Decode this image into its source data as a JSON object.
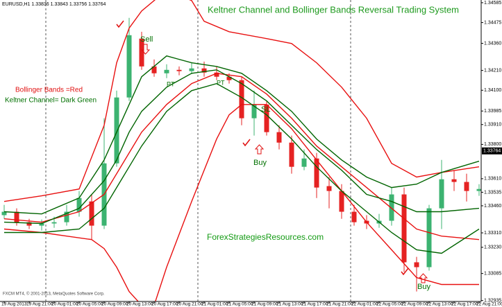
{
  "chart_data": {
    "type": "candlestick",
    "title": "Keltner Channel and Bollinger Bands Reversal Trading System",
    "symbol_info": "EURUSD,H1  1.33836 1.33843 1.33756 1.33764",
    "legend_bb": "Bollinger Bands =Red",
    "legend_kc": "Keltner Channel= Dark Green",
    "annotations": [
      "Sell",
      "PT",
      "PT",
      "SL",
      "Buy",
      "Buy"
    ],
    "watermark": "ForexStrategiesResources.com",
    "copyright": "FXCM MT4, © 2001-2013, MetaQuotes Software Corp.",
    "current_price": 1.33764,
    "categories": [
      "19 Aug 2013",
      null,
      "19 Aug 21:00",
      null,
      "20 Aug 01:00",
      null,
      "20 Aug 05:00",
      null,
      "20 Aug 09:00",
      null,
      "20 Aug 13:00",
      null,
      "20 Aug 17:00",
      null,
      "20 Aug 21:00",
      null,
      "21 Aug 01:00",
      null,
      "21 Aug 05:00",
      null,
      "21 Aug 09:00",
      null,
      "21 Aug 13:00",
      null,
      "21 Aug 17:00",
      null,
      "21 Aug 21:00",
      null,
      "22 Aug 01:00",
      null,
      "22 Aug 05:00",
      null,
      "22 Aug 09:00",
      null,
      "22 Aug 13:00",
      null,
      "22 Aug 17:00",
      null,
      "22 Aug 21:00"
    ],
    "open": [
      1.33408,
      1.33427,
      1.33369,
      1.3335,
      1.33362,
      1.33369,
      1.33427,
      1.33484,
      1.3335,
      1.33695,
      1.3406,
      1.34386,
      1.34232,
      1.34194,
      1.34213,
      1.34206,
      1.34221,
      1.34198,
      1.34175,
      1.34156,
      1.33945,
      1.34021,
      1.33868,
      1.3381,
      1.33676,
      1.33722,
      1.33569,
      1.33542,
      1.33427,
      1.33377,
      1.33362,
      1.33377,
      1.33523,
      1.33147,
      1.3312,
      1.33446,
      1.33607,
      1.33592,
      1.33542
    ],
    "high": [
      1.33465,
      1.33446,
      1.33388,
      1.33384,
      1.334,
      1.33465,
      1.33542,
      1.33523,
      1.33945,
      1.34098,
      1.34501,
      1.34424,
      1.34271,
      1.34244,
      1.34232,
      1.34252,
      1.34259,
      1.34232,
      1.34194,
      1.34175,
      1.34098,
      1.34041,
      1.33906,
      1.33849,
      1.33772,
      1.33753,
      1.33619,
      1.3358,
      1.33465,
      1.33408,
      1.33415,
      1.33561,
      1.33561,
      1.33177,
      1.33465,
      1.33714,
      1.33657,
      1.33638,
      1.3358
    ],
    "low": [
      1.33388,
      1.3335,
      1.33331,
      1.33323,
      1.33338,
      1.3335,
      1.334,
      1.33273,
      1.33331,
      1.33676,
      1.34041,
      1.34213,
      1.34175,
      1.34167,
      1.34183,
      1.3419,
      1.34175,
      1.34156,
      1.34137,
      1.33906,
      1.33849,
      1.33849,
      1.33772,
      1.33638,
      1.33657,
      1.33503,
      1.33446,
      1.33388,
      1.3335,
      1.33331,
      1.33338,
      1.3335,
      1.33093,
      1.32985,
      1.33101,
      1.33331,
      1.33542,
      1.33484,
      1.33515
    ],
    "close": [
      1.33427,
      1.33369,
      1.3335,
      1.33362,
      1.33369,
      1.33427,
      1.33503,
      1.3335,
      1.33695,
      1.3406,
      1.34405,
      1.34232,
      1.34194,
      1.34213,
      1.34206,
      1.34221,
      1.34198,
      1.34175,
      1.34156,
      1.33945,
      1.34021,
      1.33868,
      1.3381,
      1.33676,
      1.33722,
      1.33561,
      1.33542,
      1.33427,
      1.33369,
      1.33362,
      1.33377,
      1.33523,
      1.33147,
      1.3312,
      1.33446,
      1.33607,
      1.33592,
      1.33542,
      1.33553
    ],
    "up_color": "#3cb371",
    "down_color": "#e52222",
    "lines": [
      {
        "color": "#e81010",
        "x": [
          0,
          3,
          6,
          8,
          9,
          10,
          11,
          13,
          15,
          16,
          18,
          21,
          23,
          25,
          27,
          29,
          31,
          33,
          35,
          38
        ],
        "values": [
          1.33484,
          1.33515,
          1.33553,
          1.33906,
          1.34252,
          1.34444,
          1.34539,
          1.34655,
          1.34597,
          1.34482,
          1.34424,
          1.34386,
          1.34359,
          1.34252,
          1.34117,
          1.33945,
          1.33695,
          1.33619,
          1.33645,
          1.33676
        ]
      },
      {
        "color": "#e81010",
        "x": [
          0,
          3,
          5,
          7,
          8,
          9,
          10,
          11,
          12,
          13,
          15,
          17,
          18,
          19,
          21,
          23,
          25,
          27,
          29,
          31,
          33,
          35,
          38
        ],
        "values": [
          1.33331,
          1.33312,
          1.33292,
          1.33273,
          1.33223,
          1.3312,
          1.32985,
          1.32909,
          1.32909,
          1.3312,
          1.33484,
          1.3383,
          1.33964,
          1.34021,
          1.34021,
          1.33887,
          1.33714,
          1.33542,
          1.33369,
          1.33216,
          1.33062,
          1.33024,
          1.33024
        ]
      },
      {
        "color": "#e81010",
        "x": [
          0,
          3,
          6,
          8,
          9,
          10,
          11,
          13,
          15,
          17,
          19,
          21,
          23,
          25,
          27,
          29,
          31,
          33,
          35,
          38
        ],
        "values": [
          1.33388,
          1.33369,
          1.33427,
          1.33523,
          1.33638,
          1.33753,
          1.33868,
          1.34021,
          1.34137,
          1.34194,
          1.34175,
          1.34079,
          1.33945,
          1.33791,
          1.33676,
          1.33561,
          1.33446,
          1.33331,
          1.33292,
          1.33273
        ]
      },
      {
        "color": "#006400",
        "x": [
          0,
          3,
          6,
          8,
          9,
          10,
          11,
          13,
          15,
          17,
          19,
          21,
          23,
          25,
          27,
          29,
          31,
          33,
          35,
          38
        ],
        "values": [
          1.33369,
          1.33362,
          1.33446,
          1.33599,
          1.33714,
          1.33868,
          1.33983,
          1.34117,
          1.34194,
          1.34213,
          1.34137,
          1.34041,
          1.33906,
          1.33772,
          1.33657,
          1.33523,
          1.33484,
          1.33427,
          1.33427,
          1.33446
        ]
      },
      {
        "color": "#006400",
        "x": [
          0,
          3,
          6,
          8,
          9,
          10,
          11,
          13,
          15,
          17,
          19,
          21,
          23,
          25,
          27,
          29,
          31,
          33,
          35,
          38
        ],
        "values": [
          1.33427,
          1.33415,
          1.33503,
          1.33714,
          1.33868,
          1.34021,
          1.34175,
          1.3429,
          1.34252,
          1.34232,
          1.34194,
          1.34098,
          1.33983,
          1.3383,
          1.33714,
          1.33619,
          1.33561,
          1.3358,
          1.33645,
          1.33707
        ]
      },
      {
        "color": "#006400",
        "x": [
          0,
          3,
          6,
          8,
          9,
          10,
          11,
          13,
          15,
          17,
          19,
          21,
          23,
          25,
          27,
          29,
          31,
          33,
          35,
          38
        ],
        "values": [
          1.33312,
          1.33312,
          1.33331,
          1.33446,
          1.33561,
          1.33676,
          1.33791,
          1.33983,
          1.34098,
          1.34137,
          1.3406,
          1.33964,
          1.3383,
          1.33676,
          1.33542,
          1.33427,
          1.33312,
          1.33216,
          1.33197,
          1.33331
        ]
      }
    ],
    "ylim": [
      1.3293,
      1.346
    ],
    "yticks": [
      1.34585,
      1.34475,
      {
        "value": 1.3436,
        "label": "1.34360"
      },
      {
        "value": 1.3421,
        "label": "1.34210"
      },
      {
        "value": 1.341,
        "label": "1.34100"
      },
      1.33985,
      {
        "value": 1.3391,
        "label": "1.33910"
      },
      {
        "value": 1.338,
        "label": "1.33800"
      },
      {
        "value": 1.3361,
        "label": "1.33610"
      },
      1.33535,
      {
        "value": 1.3346,
        "label": "1.33460"
      },
      {
        "value": 1.3331,
        "label": "1.33310"
      },
      {
        "value": 1.3323,
        "label": "1.33230"
      },
      1.33085,
      1.32935
    ]
  }
}
